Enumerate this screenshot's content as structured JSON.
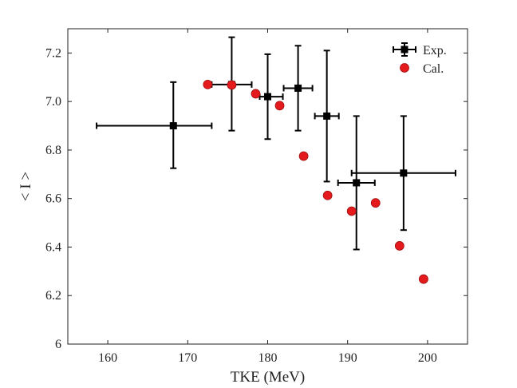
{
  "chart_data": {
    "type": "scatter",
    "title": "",
    "xlabel": "TKE (MeV)",
    "ylabel": "< I >",
    "xlim": [
      155,
      205
    ],
    "ylim": [
      6.0,
      7.3
    ],
    "xticks": [
      160,
      170,
      180,
      190,
      200
    ],
    "yticks": [
      6.0,
      6.2,
      6.4,
      6.6,
      6.8,
      7.0,
      7.2
    ],
    "xtick_labels": [
      "160",
      "170",
      "180",
      "190",
      "200"
    ],
    "ytick_labels": [
      "6",
      "6.2",
      "6.4",
      "6.6",
      "6.8",
      "7.0",
      "7.2"
    ],
    "grid": false,
    "legend_position": "top-right",
    "series": [
      {
        "name": "Exp.",
        "marker": "square",
        "color": "#000000",
        "points": [
          {
            "x": 168.2,
            "y": 6.9,
            "xerr": [
              9.6,
              4.8
            ],
            "yerr": [
              0.175,
              0.18
            ]
          },
          {
            "x": 175.5,
            "y": 7.07,
            "xerr": [
              2.5,
              2.5
            ],
            "yerr": [
              0.19,
              0.195
            ]
          },
          {
            "x": 180.0,
            "y": 7.02,
            "xerr": [
              1.0,
              1.9
            ],
            "yerr": [
              0.175,
              0.175
            ]
          },
          {
            "x": 183.8,
            "y": 7.055,
            "xerr": [
              1.8,
              1.8
            ],
            "yerr": [
              0.175,
              0.175
            ]
          },
          {
            "x": 187.4,
            "y": 6.94,
            "xerr": [
              1.5,
              1.5
            ],
            "yerr": [
              0.27,
              0.27
            ]
          },
          {
            "x": 191.1,
            "y": 6.665,
            "xerr": [
              2.3,
              2.3
            ],
            "yerr": [
              0.275,
              0.275
            ]
          },
          {
            "x": 197.0,
            "y": 6.705,
            "xerr": [
              6.5,
              6.5
            ],
            "yerr": [
              0.235,
              0.235
            ]
          }
        ]
      },
      {
        "name": "Cal.",
        "marker": "circle",
        "color": "#e41a1c",
        "points": [
          {
            "x": 172.5,
            "y": 7.07
          },
          {
            "x": 175.5,
            "y": 7.068
          },
          {
            "x": 178.5,
            "y": 7.032
          },
          {
            "x": 181.5,
            "y": 6.983
          },
          {
            "x": 184.5,
            "y": 6.775
          },
          {
            "x": 187.5,
            "y": 6.613
          },
          {
            "x": 190.5,
            "y": 6.548
          },
          {
            "x": 193.5,
            "y": 6.582
          },
          {
            "x": 196.5,
            "y": 6.405
          },
          {
            "x": 199.5,
            "y": 6.268
          }
        ]
      }
    ]
  }
}
